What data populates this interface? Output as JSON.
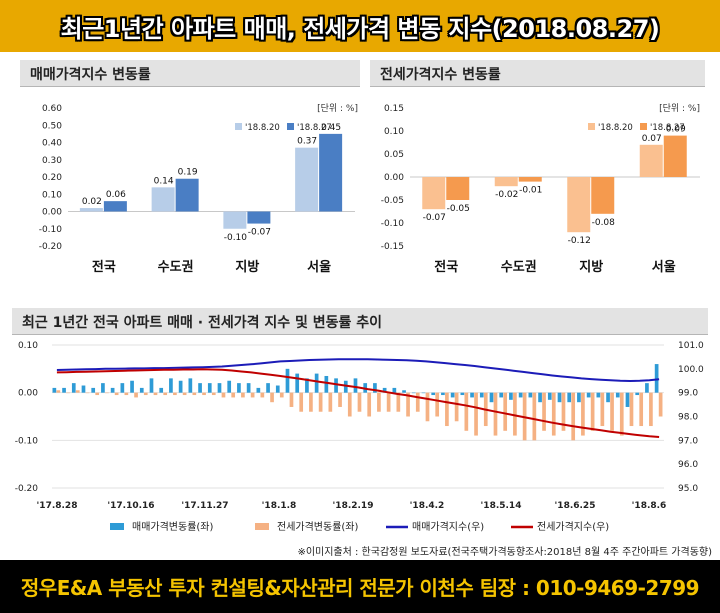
{
  "header": {
    "title": "최근1년간 아파트 매매, 전세가격 변동 지수(2018.08.27)"
  },
  "footer": {
    "source": "※이미지출처 : 한국감정원 보도자료(전국주택가격동향조사:2018년 8월 4주 주간아파트 가격동향)",
    "banner": "정우E&A 부동산 투자 컨설팅&자산관리 전문가 이천수 팀장 : 010-9469-2799"
  },
  "chart_data": [
    {
      "type": "bar",
      "title": "매매가격지수 변동률",
      "unit_label": "[단위 : %]",
      "categories": [
        "전국",
        "수도권",
        "지방",
        "서울"
      ],
      "series": [
        {
          "name": "'18.8.20",
          "values": [
            0.02,
            0.14,
            -0.1,
            0.37
          ],
          "color": "#b7cde8"
        },
        {
          "name": "'18.8.27",
          "values": [
            0.06,
            0.19,
            -0.07,
            0.45
          ],
          "color": "#4a7ec4"
        }
      ],
      "ylim": [
        -0.2,
        0.6
      ],
      "yticks": [
        "0.60",
        "0.50",
        "0.40",
        "0.30",
        "0.20",
        "0.10",
        "0.00",
        "-0.10",
        "-0.20"
      ],
      "legend_position": "top-right"
    },
    {
      "type": "bar",
      "title": "전세가격지수 변동률",
      "unit_label": "[단위 : %]",
      "categories": [
        "전국",
        "수도권",
        "지방",
        "서울"
      ],
      "series": [
        {
          "name": "'18.8.20",
          "values": [
            -0.07,
            -0.02,
            -0.12,
            0.07
          ],
          "color": "#fac090"
        },
        {
          "name": "'18.8.27",
          "values": [
            -0.05,
            -0.01,
            -0.08,
            0.09
          ],
          "color": "#f59a4e"
        }
      ],
      "ylim": [
        -0.15,
        0.15
      ],
      "yticks": [
        "0.15",
        "0.10",
        "0.05",
        "0.00",
        "-0.05",
        "-0.10",
        "-0.15"
      ],
      "legend_position": "top-right"
    },
    {
      "type": "bar-line",
      "title": "최근 1년간 전국 아파트 매매 · 전세가격 지수 및 변동률 추이",
      "x_labels": [
        "'17.8.28",
        "'17.10.16",
        "'17.11.27",
        "'18.1.8",
        "'18.2.19",
        "'18.4.2",
        "'18.5.14",
        "'18.6.25",
        "'18.8.6"
      ],
      "y_left_ticks": [
        "0.10",
        "0.00",
        "-0.10",
        "-0.20"
      ],
      "y_left_lim": [
        -0.2,
        0.1
      ],
      "y_right_ticks": [
        "101.0",
        "100.0",
        "99.0",
        "98.0",
        "97.0",
        "96.0",
        "95.0"
      ],
      "y_right_lim": [
        95.0,
        101.0
      ],
      "series": [
        {
          "name": "매매가격변동률(좌)",
          "kind": "bar",
          "axis": "left",
          "color": "#2e9bd6",
          "values": [
            0.01,
            0.01,
            0.02,
            0.015,
            0.01,
            0.02,
            0.01,
            0.02,
            0.025,
            0.01,
            0.03,
            0.01,
            0.03,
            0.025,
            0.03,
            0.02,
            0.02,
            0.02,
            0.025,
            0.02,
            0.02,
            0.01,
            0.02,
            0.015,
            0.05,
            0.04,
            0.03,
            0.04,
            0.035,
            0.03,
            0.025,
            0.03,
            0.02,
            0.02,
            0.01,
            0.01,
            0.005,
            0.0,
            0.0,
            -0.005,
            -0.005,
            -0.01,
            -0.005,
            -0.01,
            -0.01,
            -0.02,
            -0.01,
            -0.015,
            -0.01,
            -0.01,
            -0.02,
            -0.015,
            -0.02,
            -0.02,
            -0.02,
            -0.01,
            -0.01,
            -0.02,
            -0.01,
            -0.03,
            -0.005,
            0.02,
            0.06
          ]
        },
        {
          "name": "전세가격변동률(좌)",
          "kind": "bar",
          "axis": "left",
          "color": "#f5b183",
          "values": [
            0.005,
            0.0,
            0.005,
            0.0,
            -0.005,
            0.0,
            -0.005,
            -0.005,
            -0.01,
            -0.005,
            -0.005,
            -0.005,
            -0.005,
            -0.005,
            -0.005,
            -0.005,
            -0.005,
            -0.01,
            -0.01,
            -0.01,
            -0.01,
            -0.01,
            -0.02,
            -0.01,
            -0.03,
            -0.04,
            -0.04,
            -0.04,
            -0.04,
            -0.03,
            -0.05,
            -0.04,
            -0.05,
            -0.04,
            -0.04,
            -0.04,
            -0.05,
            -0.04,
            -0.06,
            -0.05,
            -0.07,
            -0.06,
            -0.08,
            -0.09,
            -0.07,
            -0.09,
            -0.08,
            -0.09,
            -0.1,
            -0.1,
            -0.08,
            -0.09,
            -0.08,
            -0.1,
            -0.09,
            -0.08,
            -0.07,
            -0.08,
            -0.09,
            -0.07,
            -0.07,
            -0.07,
            -0.05
          ]
        },
        {
          "name": "매매가격지수(우)",
          "kind": "line",
          "axis": "right",
          "color": "#1c1cb8",
          "values": [
            99.95,
            99.96,
            99.97,
            99.98,
            99.99,
            100.0,
            100.0,
            100.01,
            100.02,
            100.02,
            100.03,
            100.03,
            100.04,
            100.05,
            100.06,
            100.07,
            100.08,
            100.1,
            100.13,
            100.16,
            100.19,
            100.23,
            100.27,
            100.31,
            100.33,
            100.35,
            100.37,
            100.38,
            100.39,
            100.4,
            100.4,
            100.4,
            100.4,
            100.39,
            100.38,
            100.37,
            100.36,
            100.34,
            100.31,
            100.28,
            100.24,
            100.2,
            100.16,
            100.12,
            100.07,
            100.02,
            99.97,
            99.92,
            99.87,
            99.82,
            99.77,
            99.72,
            99.68,
            99.64,
            99.6,
            99.57,
            99.54,
            99.52,
            99.5,
            99.49,
            99.5,
            99.52,
            99.56
          ]
        },
        {
          "name": "전세가격지수(우)",
          "kind": "line",
          "axis": "right",
          "color": "#c00000",
          "values": [
            99.85,
            99.86,
            99.87,
            99.88,
            99.89,
            99.9,
            99.91,
            99.92,
            99.93,
            99.94,
            99.95,
            99.96,
            99.96,
            99.97,
            99.97,
            99.98,
            99.97,
            99.96,
            99.93,
            99.89,
            99.85,
            99.8,
            99.75,
            99.7,
            99.64,
            99.58,
            99.52,
            99.46,
            99.4,
            99.34,
            99.28,
            99.22,
            99.15,
            99.09,
            99.02,
            98.95,
            98.89,
            98.82,
            98.75,
            98.68,
            98.61,
            98.54,
            98.47,
            98.39,
            98.3,
            98.22,
            98.14,
            98.06,
            97.98,
            97.9,
            97.82,
            97.74,
            97.67,
            97.6,
            97.54,
            97.48,
            97.42,
            97.36,
            97.31,
            97.26,
            97.21,
            97.17,
            97.14
          ]
        }
      ]
    }
  ]
}
